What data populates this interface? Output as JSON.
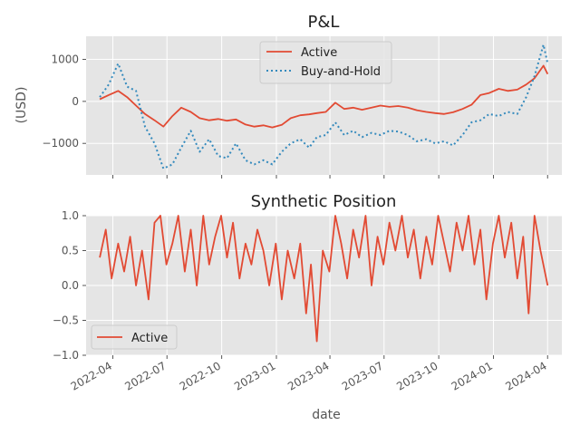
{
  "chart_data": [
    {
      "type": "line",
      "title": "P&L",
      "xlabel": "",
      "ylabel": "(USD)",
      "xlim": [
        "2022-02-15",
        "2024-04-25"
      ],
      "ylim": [
        -1750,
        1550
      ],
      "yticks": [
        1000,
        0,
        -1000
      ],
      "ytick_labels": [
        "1000",
        "0",
        "−1000"
      ],
      "grid": true,
      "legend": "top-center",
      "series": [
        {
          "name": "Active",
          "color": "#e24a33",
          "style": "solid",
          "x": [
            "2022-03-10",
            "2022-03-25",
            "2022-04-10",
            "2022-04-25",
            "2022-05-10",
            "2022-05-25",
            "2022-06-10",
            "2022-06-25",
            "2022-07-10",
            "2022-07-25",
            "2022-08-10",
            "2022-08-25",
            "2022-09-10",
            "2022-09-25",
            "2022-10-10",
            "2022-10-25",
            "2022-11-10",
            "2022-11-25",
            "2022-12-10",
            "2022-12-25",
            "2023-01-10",
            "2023-01-25",
            "2023-02-10",
            "2023-02-25",
            "2023-03-10",
            "2023-03-25",
            "2023-04-10",
            "2023-04-25",
            "2023-05-10",
            "2023-05-25",
            "2023-06-10",
            "2023-06-25",
            "2023-07-10",
            "2023-07-25",
            "2023-08-10",
            "2023-08-25",
            "2023-09-10",
            "2023-09-25",
            "2023-10-10",
            "2023-10-25",
            "2023-11-10",
            "2023-11-25",
            "2023-12-10",
            "2023-12-25",
            "2024-01-10",
            "2024-01-25",
            "2024-02-10",
            "2024-02-25",
            "2024-03-10",
            "2024-03-25",
            "2024-04-01"
          ],
          "values": [
            50,
            150,
            250,
            100,
            -100,
            -300,
            -450,
            -600,
            -350,
            -150,
            -250,
            -400,
            -450,
            -420,
            -460,
            -430,
            -550,
            -600,
            -570,
            -620,
            -560,
            -400,
            -330,
            -310,
            -280,
            -250,
            -30,
            -180,
            -150,
            -200,
            -150,
            -100,
            -130,
            -110,
            -150,
            -210,
            -250,
            -280,
            -300,
            -260,
            -180,
            -80,
            150,
            200,
            300,
            250,
            280,
            400,
            550,
            850,
            650
          ]
        },
        {
          "name": "Buy-and-Hold",
          "color": "#348abd",
          "style": "dotted",
          "x": [
            "2022-03-10",
            "2022-03-25",
            "2022-04-10",
            "2022-04-25",
            "2022-05-10",
            "2022-05-25",
            "2022-06-10",
            "2022-06-25",
            "2022-07-10",
            "2022-07-25",
            "2022-08-10",
            "2022-08-25",
            "2022-09-10",
            "2022-09-25",
            "2022-10-10",
            "2022-10-25",
            "2022-11-10",
            "2022-11-25",
            "2022-12-10",
            "2022-12-25",
            "2023-01-10",
            "2023-01-25",
            "2023-02-10",
            "2023-02-25",
            "2023-03-10",
            "2023-03-25",
            "2023-04-10",
            "2023-04-25",
            "2023-05-10",
            "2023-05-25",
            "2023-06-10",
            "2023-06-25",
            "2023-07-10",
            "2023-07-25",
            "2023-08-10",
            "2023-08-25",
            "2023-09-10",
            "2023-09-25",
            "2023-10-10",
            "2023-10-25",
            "2023-11-10",
            "2023-11-25",
            "2023-12-10",
            "2023-12-25",
            "2024-01-10",
            "2024-01-25",
            "2024-02-10",
            "2024-02-25",
            "2024-03-10",
            "2024-03-25",
            "2024-04-01"
          ],
          "values": [
            100,
            400,
            900,
            350,
            250,
            -600,
            -1000,
            -1600,
            -1500,
            -1100,
            -700,
            -1200,
            -900,
            -1300,
            -1350,
            -1000,
            -1400,
            -1500,
            -1400,
            -1500,
            -1200,
            -1000,
            -900,
            -1100,
            -850,
            -800,
            -500,
            -800,
            -700,
            -850,
            -750,
            -800,
            -700,
            -720,
            -800,
            -950,
            -900,
            -1000,
            -950,
            -1050,
            -800,
            -500,
            -450,
            -300,
            -350,
            -250,
            -300,
            100,
            600,
            1350,
            900
          ]
        }
      ]
    },
    {
      "type": "line",
      "title": "Synthetic Position",
      "xlabel": "date",
      "ylabel": "",
      "xlim": [
        "2022-02-15",
        "2024-04-25"
      ],
      "ylim": [
        -1.0,
        1.0
      ],
      "yticks": [
        1.0,
        0.5,
        0.0,
        -0.5,
        -1.0
      ],
      "ytick_labels": [
        "1.0",
        "0.5",
        "0.0",
        "−0.5",
        "−1.0"
      ],
      "xticks": [
        "2022-04-01",
        "2022-07-01",
        "2022-10-01",
        "2023-01-01",
        "2023-04-01",
        "2023-07-01",
        "2023-10-01",
        "2024-01-01",
        "2024-04-01"
      ],
      "xtick_labels": [
        "2022-04",
        "2022-07",
        "2022-10",
        "2023-01",
        "2023-04",
        "2023-07",
        "2023-10",
        "2024-01",
        "2024-04"
      ],
      "grid": true,
      "legend": "lower-left",
      "series": [
        {
          "name": "Active",
          "color": "#e24a33",
          "style": "solid",
          "x": [
            "2022-03-10",
            "2022-03-20",
            "2022-03-30",
            "2022-04-10",
            "2022-04-20",
            "2022-04-30",
            "2022-05-10",
            "2022-05-20",
            "2022-05-31",
            "2022-06-10",
            "2022-06-20",
            "2022-06-30",
            "2022-07-10",
            "2022-07-20",
            "2022-07-31",
            "2022-08-10",
            "2022-08-20",
            "2022-08-31",
            "2022-09-10",
            "2022-09-20",
            "2022-09-30",
            "2022-10-10",
            "2022-10-20",
            "2022-10-31",
            "2022-11-10",
            "2022-11-20",
            "2022-11-30",
            "2022-12-10",
            "2022-12-20",
            "2022-12-31",
            "2023-01-10",
            "2023-01-20",
            "2023-01-31",
            "2023-02-10",
            "2023-02-20",
            "2023-02-28",
            "2023-03-10",
            "2023-03-20",
            "2023-03-31",
            "2023-04-10",
            "2023-04-20",
            "2023-04-30",
            "2023-05-10",
            "2023-05-20",
            "2023-05-31",
            "2023-06-10",
            "2023-06-20",
            "2023-06-30",
            "2023-07-10",
            "2023-07-20",
            "2023-07-31",
            "2023-08-10",
            "2023-08-20",
            "2023-08-31",
            "2023-09-10",
            "2023-09-20",
            "2023-09-30",
            "2023-10-10",
            "2023-10-20",
            "2023-10-31",
            "2023-11-10",
            "2023-11-20",
            "2023-11-30",
            "2023-12-10",
            "2023-12-20",
            "2023-12-31",
            "2024-01-10",
            "2024-01-20",
            "2024-01-31",
            "2024-02-10",
            "2024-02-20",
            "2024-02-29",
            "2024-03-10",
            "2024-03-20",
            "2024-04-01"
          ],
          "values": [
            0.4,
            0.8,
            0.1,
            0.6,
            0.2,
            0.7,
            0.0,
            0.5,
            -0.2,
            0.9,
            1.0,
            0.3,
            0.6,
            1.0,
            0.2,
            0.8,
            0.0,
            1.0,
            0.3,
            0.7,
            1.0,
            0.4,
            0.9,
            0.1,
            0.6,
            0.3,
            0.8,
            0.5,
            0.0,
            0.6,
            -0.2,
            0.5,
            0.1,
            0.6,
            -0.4,
            0.3,
            -0.8,
            0.5,
            0.2,
            1.0,
            0.6,
            0.1,
            0.8,
            0.4,
            1.0,
            0.0,
            0.7,
            0.3,
            0.9,
            0.5,
            1.0,
            0.4,
            0.8,
            0.1,
            0.7,
            0.3,
            1.0,
            0.6,
            0.2,
            0.9,
            0.5,
            1.0,
            0.3,
            0.8,
            -0.2,
            0.6,
            1.0,
            0.4,
            0.9,
            0.1,
            0.7,
            -0.4,
            1.0,
            0.5,
            0.0
          ]
        }
      ]
    }
  ]
}
